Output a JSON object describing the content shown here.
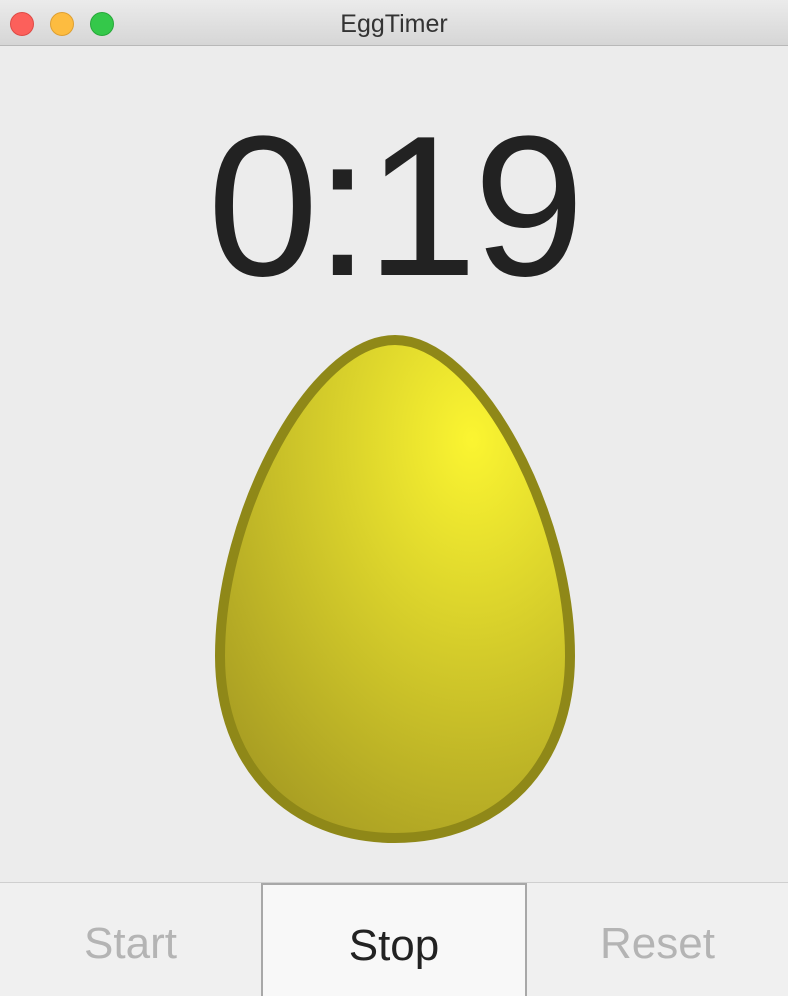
{
  "window": {
    "title": "EggTimer"
  },
  "timer": {
    "display": "0:19"
  },
  "egg": {
    "fill_light": "#fbf531",
    "fill_dark": "#a59a22",
    "outline": "#8f8818"
  },
  "buttons": {
    "start_label": "Start",
    "stop_label": "Stop",
    "reset_label": "Reset"
  }
}
